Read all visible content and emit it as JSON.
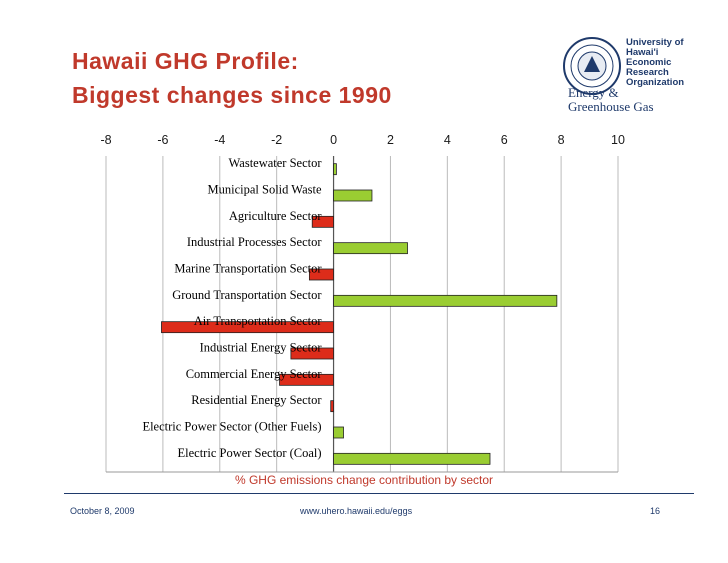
{
  "slide": {
    "title_line1": "Hawaii GHG Profile:",
    "title_line2": "Biggest changes since 1990",
    "footer_date": "October 8, 2009",
    "footer_url": "www.uhero.hawaii.edu/eggs",
    "footer_page": "16"
  },
  "logo": {
    "line1": "University of",
    "line2": "Hawai'i",
    "line3": "Economic",
    "line4": "Research",
    "line5": "Organization",
    "line6": "Energy &",
    "line7": "Greenhouse Gas"
  },
  "colors": {
    "title": "#c0392b",
    "positive_bar": "#9acd32",
    "negative_bar": "#dd2c1a",
    "footer": "#1f3a6b"
  },
  "chart_data": {
    "type": "bar",
    "orientation": "horizontal",
    "xlabel": "% GHG emissions change contribution by sector",
    "xlim": [
      -8,
      10
    ],
    "xticks": [
      "-8",
      "-6",
      "-4",
      "-2",
      "0",
      "2",
      "4",
      "6",
      "8",
      "10"
    ],
    "tick_position": "top",
    "grid": true,
    "legend": "none",
    "categories": [
      "Wastewater Sector",
      "Municipal Solid Waste",
      "Agriculture Sector",
      "Industrial Processes Sector",
      "Marine Transportation Sector",
      "Ground Transportation Sector",
      "Air Transportation Sector",
      "Industrial Energy Sector",
      "Commercial Energy Sector",
      "Residential Energy Sector",
      "Electric Power Sector (Other Fuels)",
      "Electric Power Sector (Coal)"
    ],
    "values": [
      0.1,
      1.35,
      -0.75,
      2.6,
      -0.85,
      7.85,
      -6.05,
      -1.5,
      -1.9,
      -0.1,
      0.35,
      5.5
    ]
  }
}
